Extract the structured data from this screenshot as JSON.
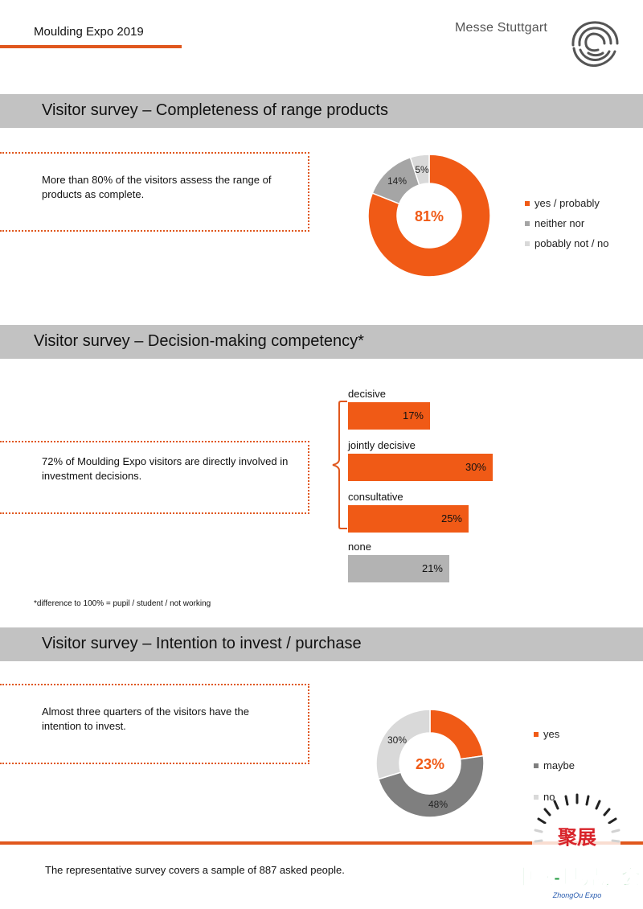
{
  "header": {
    "title": "Moulding Expo 2019",
    "brand": "Messe Stuttgart"
  },
  "section1": {
    "title": "Visitor survey  –  Completeness of range products",
    "text": "More than 80% of the visitors assess the range of products as complete.",
    "center_label": "81%",
    "slice_labels": [
      "14%",
      "5%"
    ],
    "legend": [
      "yes / probably",
      "neither nor",
      "pobably not / no"
    ]
  },
  "section2": {
    "title": "Visitor survey – Decision-making competency*",
    "text": "72% of Moulding  Expo visitors are directly involved in investment decisions.",
    "footnote": "*difference to 100% = pupil / student / not working"
  },
  "section3": {
    "title": "Visitor survey –  Intention to invest / purchase",
    "text": "Almost three quarters of the visitors have the intention to invest.",
    "center_label": "23%",
    "slice_labels": [
      "30%",
      "48%"
    ],
    "legend": [
      "yes",
      "maybe",
      "no"
    ]
  },
  "footer": {
    "text": "The representative survey covers a sample of 887 asked people."
  },
  "watermark": {
    "line1": "聚展",
    "line2": "中欧-世界展会",
    "line3": "ZhongOu Expo"
  },
  "colors": {
    "orange": "#f05a16",
    "mid_gray": "#8c8c8c",
    "gray": "#a5a5a5",
    "light_gray": "#d9d9d9",
    "band": "#c2c2c2"
  },
  "chart_data": [
    {
      "type": "pie",
      "categories": [
        "yes / probably",
        "neither nor",
        "pobably not / no"
      ],
      "values": [
        81,
        14,
        5
      ],
      "legend": "right"
    },
    {
      "type": "bar",
      "categories": [
        "decisive",
        "jointly decisive",
        "consultative",
        "none"
      ],
      "values": [
        17,
        30,
        25,
        21
      ],
      "value_labels": [
        "17%",
        "30%",
        "25%",
        "21%"
      ]
    },
    {
      "type": "pie",
      "categories": [
        "yes",
        "maybe",
        "no"
      ],
      "values": [
        23,
        48,
        30
      ],
      "legend": "right"
    }
  ]
}
